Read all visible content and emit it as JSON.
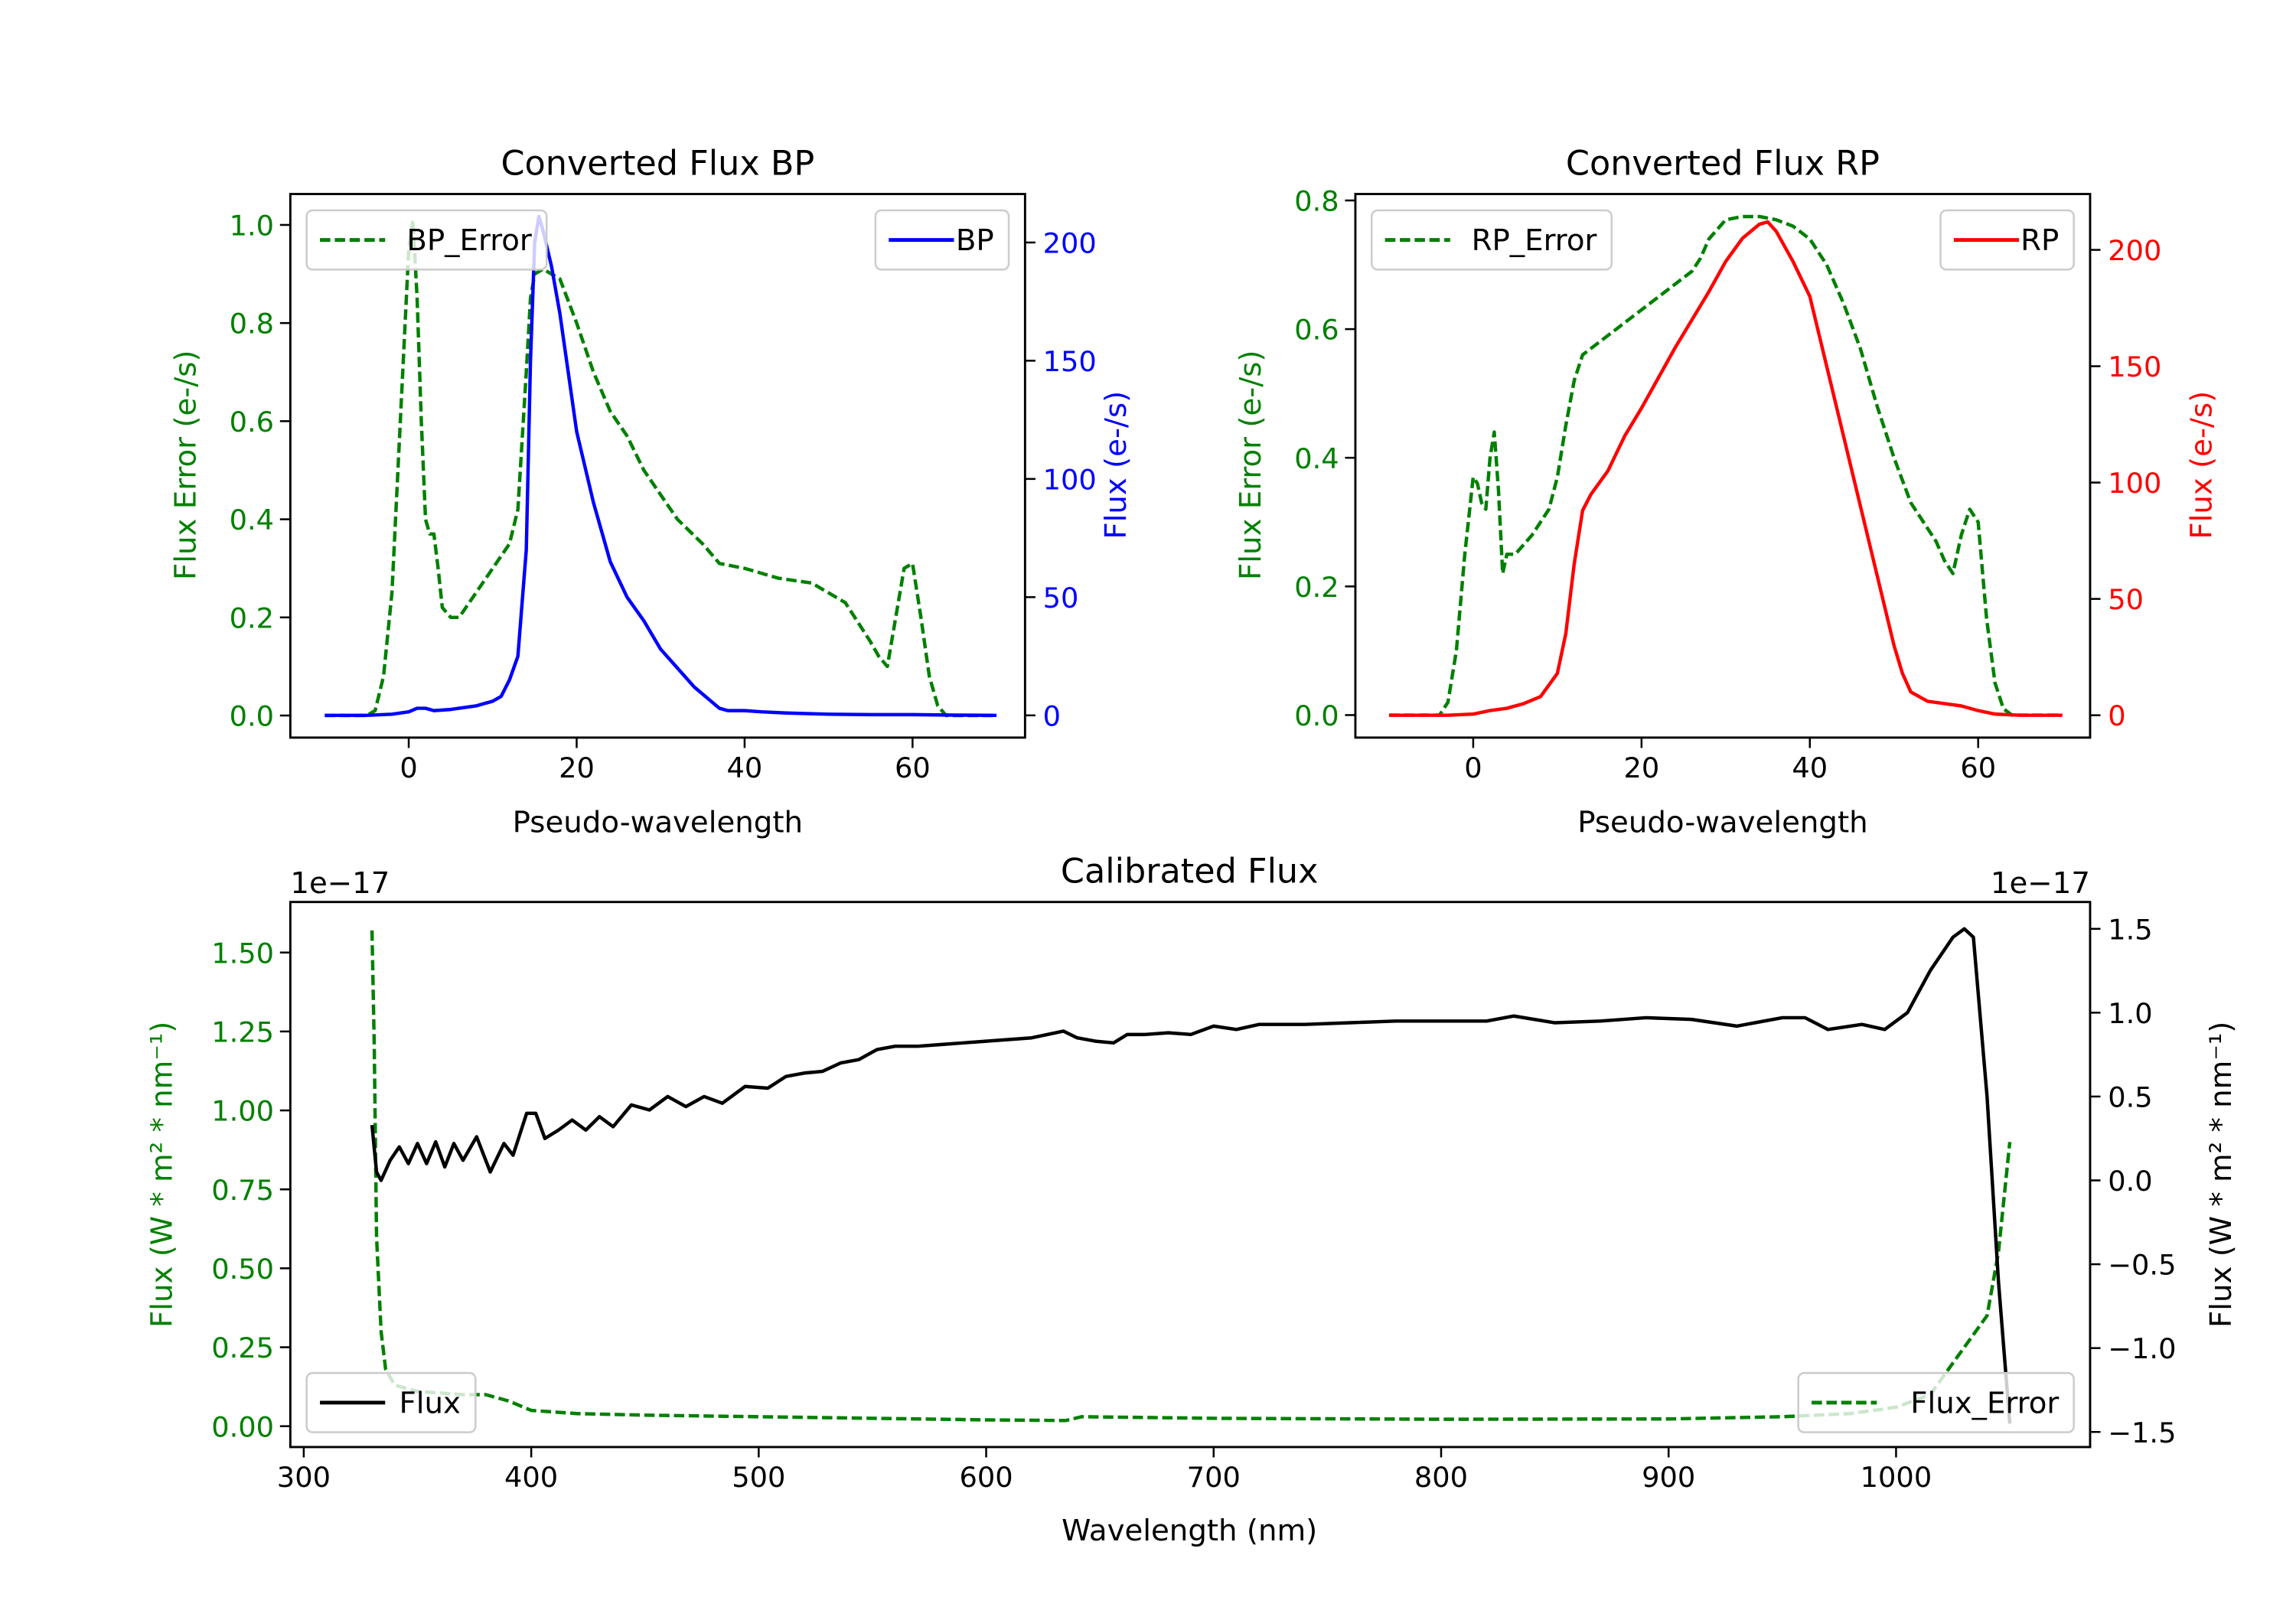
{
  "chart_data": [
    {
      "type": "line",
      "title": "Converted Flux BP",
      "xlabel": "Pseudo-wavelength",
      "ylabel_left": "Flux Error (e-/s)",
      "ylabel_right": "Flux (e-/s)",
      "xlim": [
        -14.1,
        73.4
      ],
      "ylim_left": [
        -0.045,
        1.063
      ],
      "ylim_right": [
        -9.4,
        220.5
      ],
      "xticks": [
        0,
        20,
        40,
        60
      ],
      "yticks_left": [
        0.0,
        0.2,
        0.4,
        0.6,
        0.8,
        1.0
      ],
      "yticks_left_labels": [
        "0.0",
        "0.2",
        "0.4",
        "0.6",
        "0.8",
        "1.0"
      ],
      "yticks_right": [
        0,
        50,
        100,
        150,
        200
      ],
      "left_color": "#008000",
      "right_color": "#0000ff",
      "series": [
        {
          "name": "BP_Error",
          "axis": "left",
          "color": "#008000",
          "style": "dashed",
          "legend": "upper-left",
          "x": [
            -10,
            -5,
            -4,
            -3,
            -2,
            -1,
            0,
            0.5,
            1,
            1.5,
            2,
            2.5,
            3,
            3.5,
            4,
            5,
            6,
            8,
            10,
            12,
            13,
            14,
            14.5,
            15,
            16,
            17,
            18,
            20,
            22,
            24,
            26,
            28,
            30,
            32,
            35,
            37,
            40,
            44,
            48,
            52,
            55,
            56,
            57,
            58,
            59,
            60,
            61,
            62,
            63,
            64,
            70
          ],
          "y": [
            0,
            0,
            0.01,
            0.08,
            0.25,
            0.6,
            0.95,
            1.01,
            0.85,
            0.6,
            0.4,
            0.37,
            0.37,
            0.3,
            0.22,
            0.2,
            0.2,
            0.25,
            0.3,
            0.35,
            0.42,
            0.7,
            0.85,
            0.9,
            0.91,
            0.9,
            0.89,
            0.8,
            0.7,
            0.62,
            0.57,
            0.5,
            0.45,
            0.4,
            0.35,
            0.31,
            0.3,
            0.28,
            0.27,
            0.23,
            0.15,
            0.12,
            0.1,
            0.2,
            0.3,
            0.31,
            0.2,
            0.08,
            0.02,
            0,
            0
          ]
        },
        {
          "name": "BP",
          "axis": "right",
          "color": "#0000ff",
          "style": "solid",
          "legend": "upper-right",
          "x": [
            -10,
            -5,
            -2,
            0,
            1,
            2,
            3,
            5,
            8,
            10,
            11,
            12,
            13,
            14,
            14.5,
            15,
            15.5,
            16,
            17,
            18,
            19,
            20,
            22,
            24,
            26,
            28,
            30,
            32,
            34,
            36,
            37,
            38,
            40,
            42,
            45,
            50,
            55,
            60,
            65,
            70
          ],
          "y": [
            0,
            0,
            0.5,
            1.5,
            3,
            3,
            2,
            2.5,
            4,
            6,
            8,
            15,
            25,
            70,
            150,
            200,
            211,
            205,
            190,
            170,
            145,
            120,
            90,
            65,
            50,
            40,
            28,
            20,
            12,
            6,
            3,
            2,
            2,
            1.5,
            1,
            0.5,
            0.3,
            0.3,
            0.1,
            0
          ]
        }
      ]
    },
    {
      "type": "line",
      "title": "Converted Flux RP",
      "xlabel": "Pseudo-wavelength",
      "ylabel_left": "Flux Error (e-/s)",
      "ylabel_right": "Flux (e-/s)",
      "xlim": [
        -14.0,
        73.3
      ],
      "ylim_left": [
        -0.035,
        0.81
      ],
      "ylim_right": [
        -9.6,
        224
      ],
      "xticks": [
        0,
        20,
        40,
        60
      ],
      "yticks_left": [
        0.0,
        0.2,
        0.4,
        0.6,
        0.8
      ],
      "yticks_left_labels": [
        "0.0",
        "0.2",
        "0.4",
        "0.6",
        "0.8"
      ],
      "yticks_right": [
        0,
        50,
        100,
        150,
        200
      ],
      "left_color": "#008000",
      "right_color": "#ff0000",
      "series": [
        {
          "name": "RP_Error",
          "axis": "left",
          "color": "#008000",
          "style": "dashed",
          "legend": "upper-left",
          "x": [
            -10,
            -4,
            -3,
            -2,
            -1,
            0,
            0.5,
            1,
            1.5,
            2,
            2.5,
            3,
            3.5,
            4,
            5,
            7,
            9,
            10,
            11,
            12,
            13,
            15,
            17,
            19,
            21,
            24,
            26,
            27,
            28,
            30,
            32,
            34,
            36,
            38,
            40,
            42,
            44,
            46,
            48,
            50,
            52,
            54,
            55,
            56,
            57,
            58,
            59,
            60,
            61,
            62,
            63,
            64,
            70
          ],
          "y": [
            0,
            0,
            0.02,
            0.1,
            0.25,
            0.37,
            0.36,
            0.33,
            0.32,
            0.4,
            0.44,
            0.35,
            0.22,
            0.25,
            0.25,
            0.28,
            0.32,
            0.37,
            0.45,
            0.52,
            0.56,
            0.58,
            0.6,
            0.62,
            0.64,
            0.67,
            0.69,
            0.71,
            0.74,
            0.77,
            0.775,
            0.775,
            0.77,
            0.76,
            0.74,
            0.7,
            0.64,
            0.57,
            0.48,
            0.4,
            0.33,
            0.29,
            0.27,
            0.24,
            0.22,
            0.28,
            0.32,
            0.3,
            0.15,
            0.05,
            0.01,
            0,
            0
          ]
        },
        {
          "name": "RP",
          "axis": "right",
          "color": "#ff0000",
          "style": "solid",
          "legend": "upper-right",
          "x": [
            -10,
            -3,
            0,
            2,
            4,
            6,
            8,
            10,
            11,
            12,
            13,
            14,
            16,
            18,
            20,
            22,
            24,
            26,
            28,
            30,
            32,
            34,
            35,
            36,
            38,
            40,
            42,
            44,
            46,
            48,
            50,
            51,
            52,
            54,
            56,
            58,
            60,
            62,
            65,
            70
          ],
          "y": [
            0,
            0,
            0.5,
            2,
            3,
            5,
            8,
            18,
            35,
            65,
            88,
            95,
            105,
            120,
            132,
            145,
            158,
            170,
            182,
            195,
            205,
            211,
            212,
            208,
            195,
            180,
            150,
            120,
            90,
            60,
            30,
            18,
            10,
            6,
            5,
            4,
            2,
            0.5,
            0,
            0
          ]
        }
      ]
    },
    {
      "type": "line",
      "title": "Calibrated Flux",
      "xlabel": "Wavelength (nm)",
      "ylabel_left": "Flux (W * m² * nm⁻¹)",
      "ylabel_right": "Flux (W * m² * nm⁻¹)",
      "offset_left": "1e−17",
      "offset_right": "1e−17",
      "xlim": [
        294.1,
        1085.3
      ],
      "ylim_left": [
        -0.066,
        1.66
      ],
      "ylim_right": [
        -1.59,
        1.66
      ],
      "xticks": [
        300,
        400,
        500,
        600,
        700,
        800,
        900,
        1000
      ],
      "yticks_left": [
        0.0,
        0.25,
        0.5,
        0.75,
        1.0,
        1.25,
        1.5
      ],
      "yticks_left_labels": [
        "0.00",
        "0.25",
        "0.50",
        "0.75",
        "1.00",
        "1.25",
        "1.50"
      ],
      "yticks_right": [
        -1.5,
        -1.0,
        -0.5,
        0.0,
        0.5,
        1.0,
        1.5
      ],
      "yticks_right_labels": [
        "−1.5",
        "−1.0",
        "−0.5",
        "0.0",
        "0.5",
        "1.0",
        "1.5"
      ],
      "left_color": "#008000",
      "right_color": "#000000",
      "series": [
        {
          "name": "Flux_Error",
          "axis": "left",
          "color": "#008000",
          "style": "dashed",
          "legend": "lower-right",
          "x": [
            330,
            331,
            332,
            334,
            336,
            340,
            350,
            370,
            380,
            390,
            400,
            420,
            450,
            500,
            600,
            635,
            642,
            700,
            800,
            900,
            950,
            980,
            1000,
            1015,
            1025,
            1035,
            1040,
            1045,
            1050
          ],
          "y": [
            1.57,
            1.2,
            0.6,
            0.3,
            0.18,
            0.13,
            0.11,
            0.1,
            0.1,
            0.08,
            0.05,
            0.04,
            0.035,
            0.03,
            0.02,
            0.018,
            0.03,
            0.025,
            0.022,
            0.023,
            0.03,
            0.04,
            0.06,
            0.1,
            0.2,
            0.3,
            0.35,
            0.55,
            0.9
          ]
        },
        {
          "name": "Flux",
          "axis": "right",
          "color": "#000000",
          "style": "solid",
          "legend": "lower-left",
          "x": [
            330,
            332,
            334,
            338,
            342,
            346,
            350,
            354,
            358,
            362,
            366,
            370,
            376,
            382,
            388,
            392,
            398,
            402,
            406,
            412,
            418,
            424,
            430,
            436,
            444,
            452,
            460,
            468,
            476,
            484,
            494,
            504,
            512,
            520,
            528,
            536,
            544,
            552,
            560,
            570,
            580,
            590,
            600,
            620,
            634,
            640,
            648,
            656,
            662,
            670,
            680,
            690,
            700,
            710,
            720,
            740,
            760,
            780,
            800,
            820,
            832,
            850,
            870,
            890,
            910,
            930,
            950,
            960,
            970,
            985,
            995,
            1005,
            1015,
            1025,
            1030,
            1034,
            1040,
            1045,
            1050
          ],
          "y": [
            0.33,
            0.05,
            0.0,
            0.12,
            0.2,
            0.1,
            0.22,
            0.1,
            0.23,
            0.08,
            0.22,
            0.12,
            0.26,
            0.05,
            0.22,
            0.15,
            0.4,
            0.4,
            0.25,
            0.3,
            0.36,
            0.3,
            0.38,
            0.32,
            0.45,
            0.42,
            0.5,
            0.44,
            0.5,
            0.46,
            0.56,
            0.55,
            0.62,
            0.64,
            0.65,
            0.7,
            0.72,
            0.78,
            0.8,
            0.8,
            0.81,
            0.82,
            0.83,
            0.85,
            0.89,
            0.85,
            0.83,
            0.82,
            0.87,
            0.87,
            0.88,
            0.87,
            0.92,
            0.9,
            0.93,
            0.93,
            0.94,
            0.95,
            0.95,
            0.95,
            0.98,
            0.94,
            0.95,
            0.97,
            0.96,
            0.92,
            0.97,
            0.97,
            0.9,
            0.93,
            0.9,
            1.0,
            1.25,
            1.45,
            1.5,
            1.45,
            0.5,
            -0.6,
            -1.45
          ]
        }
      ]
    }
  ]
}
